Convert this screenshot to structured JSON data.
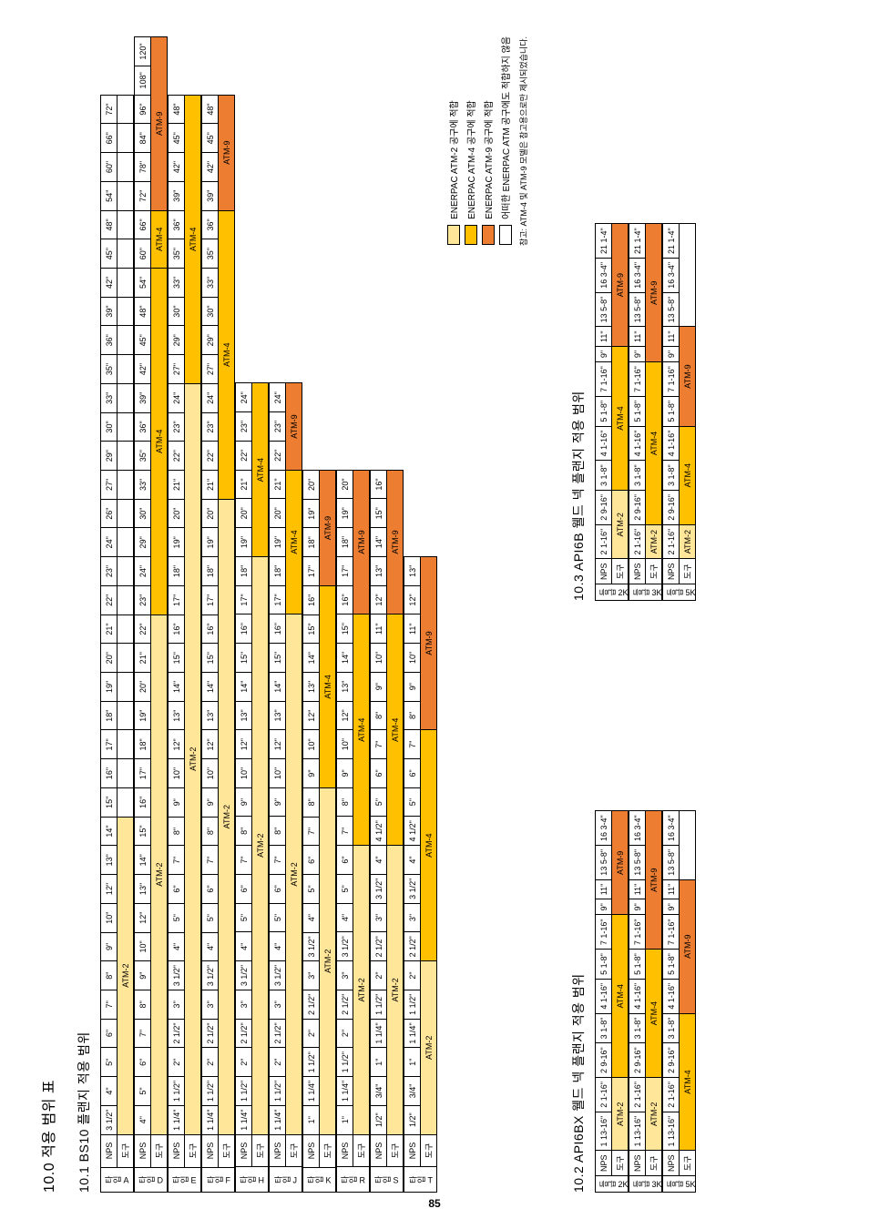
{
  "headings": {
    "h1": "10.0  적용 범위 표",
    "h2_bs10": "10.1  BS10 플랜지 적용 범위",
    "h2_api6bx": "10.2  API6BX 웰드 넥 플랜지 적용 범위",
    "h2_api6b": "10.3  API6B 웰드 넥 플랜지 적용 범위"
  },
  "page_number": "85",
  "legend_title": "참고: ATM-4 및 ATM-9 모델은 참고용으로만 제시되었습니다.",
  "bs10": {
    "row_label": "NPS",
    "row_sub": "도구",
    "sizes": [
      "3 1/2\"",
      "4\"",
      "5\"",
      "6\"",
      "7\"",
      "8\"",
      "9\"",
      "10\"",
      "12\"",
      "13\"",
      "14\"",
      "15\"",
      "16\"",
      "17\"",
      "18\"",
      "19\"",
      "20\"",
      "21\"",
      "22\"",
      "23\"",
      "24\"",
      "26\"",
      "27\"",
      "29\"",
      "30\"",
      "33\"",
      "35\"",
      "36\"",
      "39\"",
      "42\"",
      "45\"",
      "48\"",
      "54\"",
      "60\"",
      "66\"",
      "72\""
    ],
    "tables": {
      "A": {
        "label": "타입 A",
        "tool": {
          "text": "ATM-2",
          "cls": "c-atm2",
          "span": [
            0,
            10
          ]
        }
      },
      "D": {
        "label": "타입 D",
        "sizes": [
          "4\"",
          "5\"",
          "6\"",
          "7\"",
          "8\"",
          "9\"",
          "10\"",
          "12\"",
          "13\"",
          "14\"",
          "15\"",
          "16\"",
          "17\"",
          "18\"",
          "19\"",
          "20\"",
          "21\"",
          "22\"",
          "23\"",
          "24\"",
          "29\"",
          "30\"",
          "33\"",
          "35\"",
          "36\"",
          "39\"",
          "42\"",
          "45\"",
          "48\"",
          "54\"",
          "60\"",
          "66\"",
          "72\"",
          "78\"",
          "84\"",
          "96\"",
          "108\"",
          "120\""
        ],
        "tools": [
          {
            "text": "ATM-2",
            "cls": "c-atm2",
            "span": 18
          },
          {
            "text": "ATM-4",
            "cls": "c-atm4",
            "span": 12
          },
          {
            "text": "ATM-4",
            "cls": "c-atm4",
            "span": 2
          },
          {
            "text": "ATM-9",
            "cls": "c-atm9",
            "span": 6
          }
        ]
      },
      "E": {
        "label": "타입 E",
        "sizes": [
          "1 1/4\"",
          "1 1/2\"",
          "2\"",
          "2 1/2\"",
          "3\"",
          "3 1/2\"",
          "4\"",
          "5\"",
          "6\"",
          "7\"",
          "8\"",
          "9\"",
          "10\"",
          "12\"",
          "13\"",
          "14\"",
          "15\"",
          "16\"",
          "17\"",
          "18\"",
          "19\"",
          "20\"",
          "21\"",
          "22\"",
          "23\"",
          "24\"",
          "27\"",
          "29\"",
          "30\"",
          "33\"",
          "35\"",
          "36\"",
          "39\"",
          "42\"",
          "45\"",
          "48\""
        ],
        "tools": [
          {
            "text": "ATM-2",
            "cls": "c-atm2",
            "span": 26
          },
          {
            "text": "ATM-4",
            "cls": "c-atm4",
            "span": 10
          }
        ]
      },
      "F": {
        "label": "타입 F",
        "sizes": [
          "1 1/4\"",
          "1 1/2\"",
          "2\"",
          "2 1/2\"",
          "3\"",
          "3 1/2\"",
          "4\"",
          "5\"",
          "6\"",
          "7\"",
          "8\"",
          "9\"",
          "10\"",
          "12\"",
          "13\"",
          "14\"",
          "15\"",
          "16\"",
          "17\"",
          "18\"",
          "19\"",
          "20\"",
          "21\"",
          "22\"",
          "23\"",
          "24\"",
          "27\"",
          "29\"",
          "30\"",
          "33\"",
          "35\"",
          "36\"",
          "39\"",
          "42\"",
          "45\"",
          "48\""
        ],
        "tools": [
          {
            "text": "ATM-2",
            "cls": "c-atm2",
            "span": 22
          },
          {
            "text": "ATM-4",
            "cls": "c-atm4",
            "span": 10
          },
          {
            "text": "ATM-9",
            "cls": "c-atm9",
            "span": 4
          }
        ]
      },
      "H": {
        "label": "타입 H",
        "sizes": [
          "1 1/4\"",
          "1 1/2\"",
          "2\"",
          "2 1/2\"",
          "3\"",
          "3 1/2\"",
          "4\"",
          "5\"",
          "6\"",
          "7\"",
          "8\"",
          "9\"",
          "10\"",
          "12\"",
          "13\"",
          "14\"",
          "15\"",
          "16\"",
          "17\"",
          "18\"",
          "19\"",
          "20\"",
          "21\"",
          "22\"",
          "23\"",
          "24\""
        ],
        "tools": [
          {
            "text": "ATM-2",
            "cls": "c-atm2",
            "span": 20
          },
          {
            "text": "ATM-4",
            "cls": "c-atm4",
            "span": 6
          }
        ]
      },
      "J": {
        "label": "타입 J",
        "sizes": [
          "1 1/4\"",
          "1 1/2\"",
          "2\"",
          "2 1/2\"",
          "3\"",
          "3 1/2\"",
          "4\"",
          "5\"",
          "6\"",
          "7\"",
          "8\"",
          "9\"",
          "10\"",
          "12\"",
          "13\"",
          "14\"",
          "15\"",
          "16\"",
          "17\"",
          "18\"",
          "19\"",
          "20\"",
          "21\"",
          "22\"",
          "23\"",
          "24\""
        ],
        "tools": [
          {
            "text": "ATM-2",
            "cls": "c-atm2",
            "span": 18
          },
          {
            "text": "ATM-4",
            "cls": "c-atm4",
            "span": 5
          },
          {
            "text": "ATM-9",
            "cls": "c-atm9",
            "span": 3
          }
        ]
      },
      "K": {
        "label": "타입 K",
        "sizes": [
          "1\"",
          "1 1/4\"",
          "1 1/2\"",
          "2\"",
          "2 1/2\"",
          "3\"",
          "3 1/2\"",
          "4\"",
          "5\"",
          "6\"",
          "7\"",
          "8\"",
          "9\"",
          "10\"",
          "12\"",
          "13\"",
          "14\"",
          "15\"",
          "16\"",
          "17\"",
          "18\"",
          "19\"",
          "20\""
        ],
        "tools": [
          {
            "text": "ATM-2",
            "cls": "c-atm2",
            "span": 12
          },
          {
            "text": "ATM-4",
            "cls": "c-atm4",
            "span": 7
          },
          {
            "text": "ATM-9",
            "cls": "c-atm9",
            "span": 4
          }
        ]
      },
      "R": {
        "label": "타입 R",
        "sizes": [
          "1\"",
          "1 1/4\"",
          "1 1/2\"",
          "2\"",
          "2 1/2\"",
          "3\"",
          "3 1/2\"",
          "4\"",
          "5\"",
          "6\"",
          "7\"",
          "8\"",
          "9\"",
          "10\"",
          "12\"",
          "13\"",
          "14\"",
          "15\"",
          "16\"",
          "17\"",
          "18\"",
          "19\"",
          "20\""
        ],
        "tools": [
          {
            "text": "ATM-2",
            "cls": "c-atm2",
            "span": 10
          },
          {
            "text": "ATM-4",
            "cls": "c-atm4",
            "span": 8
          },
          {
            "text": "ATM-9",
            "cls": "c-atm9",
            "span": 5
          }
        ]
      },
      "S": {
        "label": "타입 S",
        "sizes": [
          "1/2\"",
          "3/4\"",
          "1\"",
          "1 1/4\"",
          "1 1/2\"",
          "2\"",
          "2 1/2\"",
          "3\"",
          "3 1/2\"",
          "4\"",
          "4 1/2\"",
          "5\"",
          "6\"",
          "7\"",
          "8\"",
          "9\"",
          "10\"",
          "11\"",
          "12\"",
          "13\"",
          "14\"",
          "15\"",
          "16\""
        ],
        "tools": [
          {
            "text": "ATM-2",
            "cls": "c-atm2",
            "span": 10
          },
          {
            "text": "ATM-4",
            "cls": "c-atm4",
            "span": 8
          },
          {
            "text": "ATM-9",
            "cls": "c-atm9",
            "span": 5
          }
        ]
      },
      "T": {
        "label": "타입 T",
        "sizes": [
          "1/2\"",
          "3/4\"",
          "1\"",
          "1 1/4\"",
          "1 1/2\"",
          "2\"",
          "2 1/2\"",
          "3\"",
          "3 1/2\"",
          "4\"",
          "4 1/2\"",
          "5\"",
          "6\"",
          "7\"",
          "8\"",
          "9\"",
          "10\"",
          "11\"",
          "12\"",
          "13\""
        ],
        "tools": [
          {
            "text": "ATM-2",
            "cls": "c-atm2",
            "span": 6
          },
          {
            "text": "ATM-4",
            "cls": "c-atm4",
            "span": 8
          },
          {
            "text": "ATM-9",
            "cls": "c-atm9",
            "span": 6
          }
        ]
      }
    }
  },
  "legend": {
    "items": [
      {
        "cls": "c-atm2",
        "text": "ENERPAC ATM-2 공구에 적합"
      },
      {
        "cls": "c-atm4",
        "text": "ENERPAC ATM-4 공구에 적합"
      },
      {
        "cls": "c-atm9",
        "text": "ENERPAC ATM-9 공구에 적합"
      },
      {
        "cls": "",
        "text": "어떠한 ENERPAC ATM 공구에도 적합하지 않음"
      }
    ]
  },
  "api6bx": {
    "row_label": "NPS",
    "row_sub": "도구",
    "groups": [
      {
        "label": "등급 2K",
        "sizes": [
          "1 13-16\"",
          "2 1-16\"",
          "2 9-16\"",
          "3 1-8\"",
          "4 1-16\"",
          "5 1-8\"",
          "7 1-16\"",
          "9\"",
          "11\"",
          "13 5-8\"",
          "16 3-4\""
        ],
        "tools": [
          {
            "text": "ATM-2",
            "cls": "c-atm2",
            "span": 2
          },
          {
            "text": "ATM-4",
            "cls": "c-atm4",
            "span": 5
          },
          {
            "text": "ATM-9",
            "cls": "c-atm9",
            "span": 4
          }
        ]
      },
      {
        "label": "등급 3K",
        "sizes": [
          "1 13-16\"",
          "2 1-16\"",
          "2 9-16\"",
          "3 1-8\"",
          "4 1-16\"",
          "5 1-8\"",
          "7 1-16\"",
          "9\"",
          "11\"",
          "13 5-8\"",
          "16 3-4\""
        ],
        "tools": [
          {
            "text": "ATM-2",
            "cls": "c-atm2",
            "span": 2
          },
          {
            "text": "ATM-4",
            "cls": "c-atm4",
            "span": 4
          },
          {
            "text": "ATM-9",
            "cls": "c-atm9",
            "span": 5
          }
        ]
      },
      {
        "label": "등급 5K",
        "sizes": [
          "1 13-16\"",
          "2 1-16\"",
          "2 9-16\"",
          "3 1-8\"",
          "4 1-16\"",
          "5 1-8\"",
          "7 1-16\"",
          "9\"",
          "11\"",
          "13 5-8\"",
          "16 3-4\""
        ],
        "tools": [
          {
            "text": "ATM-4",
            "cls": "c-atm4",
            "span": 4
          },
          {
            "text": "ATM-9",
            "cls": "c-atm9",
            "span": 5
          },
          {
            "text": "",
            "cls": "",
            "span": 2
          }
        ]
      }
    ]
  },
  "api6b": {
    "row_label": "NPS",
    "row_sub": "도구",
    "groups": [
      {
        "label": "등급 2K",
        "sizes": [
          "2 1-16\"",
          "2 9-16\"",
          "3 1-8\"",
          "4 1-16\"",
          "5 1-8\"",
          "7 1-16\"",
          "9\"",
          "11\"",
          "13 5-8\"",
          "16 3-4\"",
          "21 1-4\""
        ],
        "tools": [
          {
            "text": "ATM-2",
            "cls": "c-atm2",
            "span": 2
          },
          {
            "text": "ATM-4",
            "cls": "c-atm4",
            "span": 5
          },
          {
            "text": "ATM-9",
            "cls": "c-atm9",
            "span": 4
          }
        ]
      },
      {
        "label": "등급 3K",
        "sizes": [
          "2 1-16\"",
          "2 9-16\"",
          "3 1-8\"",
          "4 1-16\"",
          "5 1-8\"",
          "7 1-16\"",
          "9\"",
          "11\"",
          "13 5-8\"",
          "16 3-4\"",
          "21 1-4\""
        ],
        "tools": [
          {
            "text": "ATM-2",
            "cls": "c-atm2",
            "span": 1
          },
          {
            "text": "ATM-4",
            "cls": "c-atm4",
            "span": 5
          },
          {
            "text": "ATM-9",
            "cls": "c-atm9",
            "span": 5
          }
        ]
      },
      {
        "label": "등급 5K",
        "sizes": [
          "2 1-16\"",
          "2 9-16\"",
          "3 1-8\"",
          "4 1-16\"",
          "5 1-8\"",
          "7 1-16\"",
          "9\"",
          "11\"",
          "13 5-8\"",
          "16 3-4\"",
          "21 1-4\""
        ],
        "tools": [
          {
            "text": "ATM-2",
            "cls": "c-atm2",
            "span": 1
          },
          {
            "text": "ATM-4",
            "cls": "c-atm4",
            "span": 3
          },
          {
            "text": "ATM-9",
            "cls": "c-atm9",
            "span": 4
          },
          {
            "text": "",
            "cls": "",
            "span": 3
          }
        ]
      }
    ]
  },
  "colors": {
    "atm2": "#ffe699",
    "atm4": "#ffc000",
    "atm9": "#ed7d31",
    "border": "#000000",
    "background": "#ffffff"
  }
}
